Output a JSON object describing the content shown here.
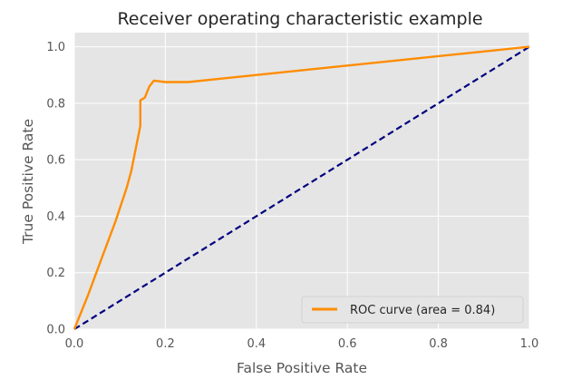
{
  "chart_data": {
    "type": "line",
    "title": "Receiver operating characteristic example",
    "xlabel": "False Positive Rate",
    "ylabel": "True Positive Rate",
    "xlim": [
      0.0,
      1.0
    ],
    "ylim": [
      0.0,
      1.05
    ],
    "xticks": [
      "0.0",
      "0.2",
      "0.4",
      "0.6",
      "0.8",
      "1.0"
    ],
    "yticks": [
      "0.0",
      "0.2",
      "0.4",
      "0.6",
      "0.8",
      "1.0"
    ],
    "grid": true,
    "legend_position": "lower-right",
    "series": [
      {
        "name": "ROC curve (area = 0.84)",
        "color": "#ff8c00",
        "style": "solid",
        "x": [
          0.0,
          0.03,
          0.06,
          0.09,
          0.115,
          0.125,
          0.135,
          0.145,
          0.145,
          0.155,
          0.165,
          0.175,
          0.2,
          0.25,
          1.0
        ],
        "y": [
          0.0,
          0.12,
          0.25,
          0.38,
          0.5,
          0.56,
          0.64,
          0.72,
          0.81,
          0.82,
          0.86,
          0.88,
          0.875,
          0.875,
          1.0
        ]
      },
      {
        "color": "#000080",
        "style": "dashed",
        "x": [
          0.0,
          1.0
        ],
        "y": [
          0.0,
          1.0
        ]
      }
    ]
  }
}
